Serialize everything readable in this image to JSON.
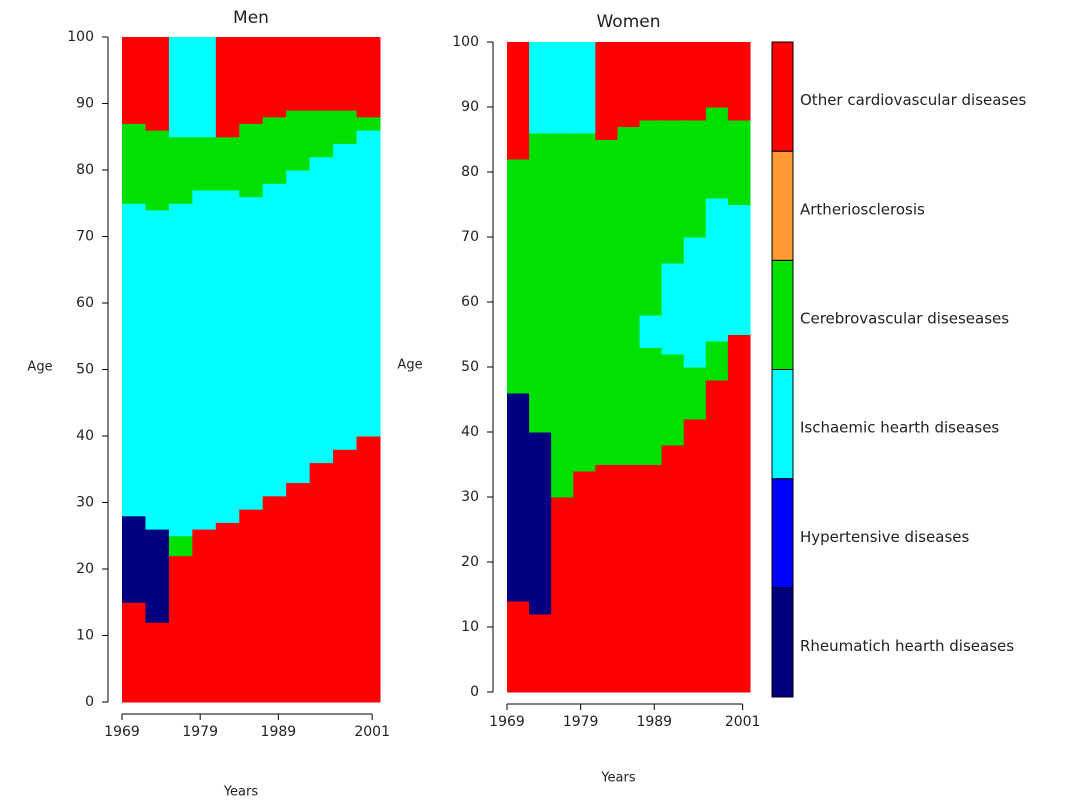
{
  "chart_data": [
    {
      "type": "heatmap",
      "title": "Men",
      "ylabel": "Age",
      "xlabel": "Years",
      "xlim": [
        1969,
        2002
      ],
      "ylim": [
        0,
        100
      ],
      "xticks": [
        1969,
        1979,
        1989,
        2001
      ],
      "yticks": [
        0,
        10,
        20,
        30,
        40,
        50,
        60,
        70,
        80,
        90,
        100
      ],
      "columns": [
        {
          "year": 1969,
          "bands": [
            {
              "cause": 5,
              "height": 15
            },
            {
              "cause": 0,
              "height": 13
            },
            {
              "cause": 2,
              "height": 47
            },
            {
              "cause": 3,
              "height": 12
            },
            {
              "cause": 5,
              "height": 13
            }
          ]
        },
        {
          "year": 1972,
          "bands": [
            {
              "cause": 5,
              "height": 12
            },
            {
              "cause": 0,
              "height": 14
            },
            {
              "cause": 2,
              "height": 48
            },
            {
              "cause": 3,
              "height": 12
            },
            {
              "cause": 5,
              "height": 14
            }
          ]
        },
        {
          "year": 1975,
          "bands": [
            {
              "cause": 5,
              "height": 22
            },
            {
              "cause": 3,
              "height": 3
            },
            {
              "cause": 2,
              "height": 50
            },
            {
              "cause": 3,
              "height": 10
            },
            {
              "cause": 2,
              "height": 15
            }
          ]
        },
        {
          "year": 1978,
          "bands": [
            {
              "cause": 5,
              "height": 26
            },
            {
              "cause": 2,
              "height": 51
            },
            {
              "cause": 3,
              "height": 8
            },
            {
              "cause": 2,
              "height": 15
            }
          ]
        },
        {
          "year": 1981,
          "bands": [
            {
              "cause": 5,
              "height": 27
            },
            {
              "cause": 2,
              "height": 50
            },
            {
              "cause": 3,
              "height": 8
            },
            {
              "cause": 5,
              "height": 15
            }
          ]
        },
        {
          "year": 1984,
          "bands": [
            {
              "cause": 5,
              "height": 29
            },
            {
              "cause": 2,
              "height": 47
            },
            {
              "cause": 3,
              "height": 11
            },
            {
              "cause": 5,
              "height": 13
            }
          ]
        },
        {
          "year": 1987,
          "bands": [
            {
              "cause": 5,
              "height": 31
            },
            {
              "cause": 2,
              "height": 47
            },
            {
              "cause": 3,
              "height": 10
            },
            {
              "cause": 5,
              "height": 12
            }
          ]
        },
        {
          "year": 1990,
          "bands": [
            {
              "cause": 5,
              "height": 33
            },
            {
              "cause": 2,
              "height": 47
            },
            {
              "cause": 3,
              "height": 9
            },
            {
              "cause": 5,
              "height": 11
            }
          ]
        },
        {
          "year": 1993,
          "bands": [
            {
              "cause": 5,
              "height": 36
            },
            {
              "cause": 2,
              "height": 46
            },
            {
              "cause": 3,
              "height": 7
            },
            {
              "cause": 5,
              "height": 11
            }
          ]
        },
        {
          "year": 1996,
          "bands": [
            {
              "cause": 5,
              "height": 38
            },
            {
              "cause": 2,
              "height": 46
            },
            {
              "cause": 3,
              "height": 5
            },
            {
              "cause": 5,
              "height": 11
            }
          ]
        },
        {
          "year": 1999,
          "bands": [
            {
              "cause": 5,
              "height": 40
            },
            {
              "cause": 2,
              "height": 46
            },
            {
              "cause": 3,
              "height": 2
            },
            {
              "cause": 5,
              "height": 12
            }
          ]
        }
      ]
    },
    {
      "type": "heatmap",
      "title": "Women",
      "ylabel": "Age",
      "xlabel": "Years",
      "xlim": [
        1969,
        2002
      ],
      "ylim": [
        0,
        100
      ],
      "xticks": [
        1969,
        1979,
        1989,
        2001
      ],
      "yticks": [
        0,
        10,
        20,
        30,
        40,
        50,
        60,
        70,
        80,
        90,
        100
      ],
      "columns": [
        {
          "year": 1969,
          "bands": [
            {
              "cause": 5,
              "height": 14
            },
            {
              "cause": 0,
              "height": 32
            },
            {
              "cause": 3,
              "height": 36
            },
            {
              "cause": 5,
              "height": 18
            }
          ]
        },
        {
          "year": 1972,
          "bands": [
            {
              "cause": 5,
              "height": 12
            },
            {
              "cause": 0,
              "height": 28
            },
            {
              "cause": 3,
              "height": 46
            },
            {
              "cause": 2,
              "height": 14
            }
          ]
        },
        {
          "year": 1975,
          "bands": [
            {
              "cause": 5,
              "height": 30
            },
            {
              "cause": 3,
              "height": 56
            },
            {
              "cause": 2,
              "height": 14
            }
          ]
        },
        {
          "year": 1978,
          "bands": [
            {
              "cause": 5,
              "height": 34
            },
            {
              "cause": 3,
              "height": 52
            },
            {
              "cause": 2,
              "height": 14
            }
          ]
        },
        {
          "year": 1981,
          "bands": [
            {
              "cause": 5,
              "height": 35
            },
            {
              "cause": 3,
              "height": 50
            },
            {
              "cause": 5,
              "height": 15
            }
          ]
        },
        {
          "year": 1984,
          "bands": [
            {
              "cause": 5,
              "height": 35
            },
            {
              "cause": 3,
              "height": 52
            },
            {
              "cause": 5,
              "height": 13
            }
          ]
        },
        {
          "year": 1987,
          "bands": [
            {
              "cause": 5,
              "height": 35
            },
            {
              "cause": 3,
              "height": 18
            },
            {
              "cause": 2,
              "height": 5
            },
            {
              "cause": 3,
              "height": 30
            },
            {
              "cause": 5,
              "height": 12
            }
          ]
        },
        {
          "year": 1990,
          "bands": [
            {
              "cause": 5,
              "height": 38
            },
            {
              "cause": 3,
              "height": 14
            },
            {
              "cause": 2,
              "height": 14
            },
            {
              "cause": 3,
              "height": 22
            },
            {
              "cause": 5,
              "height": 12
            }
          ]
        },
        {
          "year": 1993,
          "bands": [
            {
              "cause": 5,
              "height": 42
            },
            {
              "cause": 3,
              "height": 8
            },
            {
              "cause": 2,
              "height": 20
            },
            {
              "cause": 3,
              "height": 18
            },
            {
              "cause": 5,
              "height": 12
            }
          ]
        },
        {
          "year": 1996,
          "bands": [
            {
              "cause": 5,
              "height": 48
            },
            {
              "cause": 3,
              "height": 6
            },
            {
              "cause": 2,
              "height": 22
            },
            {
              "cause": 3,
              "height": 14
            },
            {
              "cause": 5,
              "height": 10
            }
          ]
        },
        {
          "year": 1999,
          "bands": [
            {
              "cause": 5,
              "height": 55
            },
            {
              "cause": 2,
              "height": 20
            },
            {
              "cause": 3,
              "height": 13
            },
            {
              "cause": 5,
              "height": 12
            }
          ]
        }
      ]
    }
  ],
  "legend": {
    "causes": [
      "Rheumatich hearth diseases",
      "Hypertensive diseases",
      "Ischaemic hearth diseases",
      "Cerebrovascular diseseases",
      "Artheriosclerosis",
      "Other cardiovascular diseases"
    ],
    "colors": [
      "#000080",
      "#0000ff",
      "#00ffff",
      "#00e000",
      "#ff9933",
      "#ff0000"
    ]
  }
}
